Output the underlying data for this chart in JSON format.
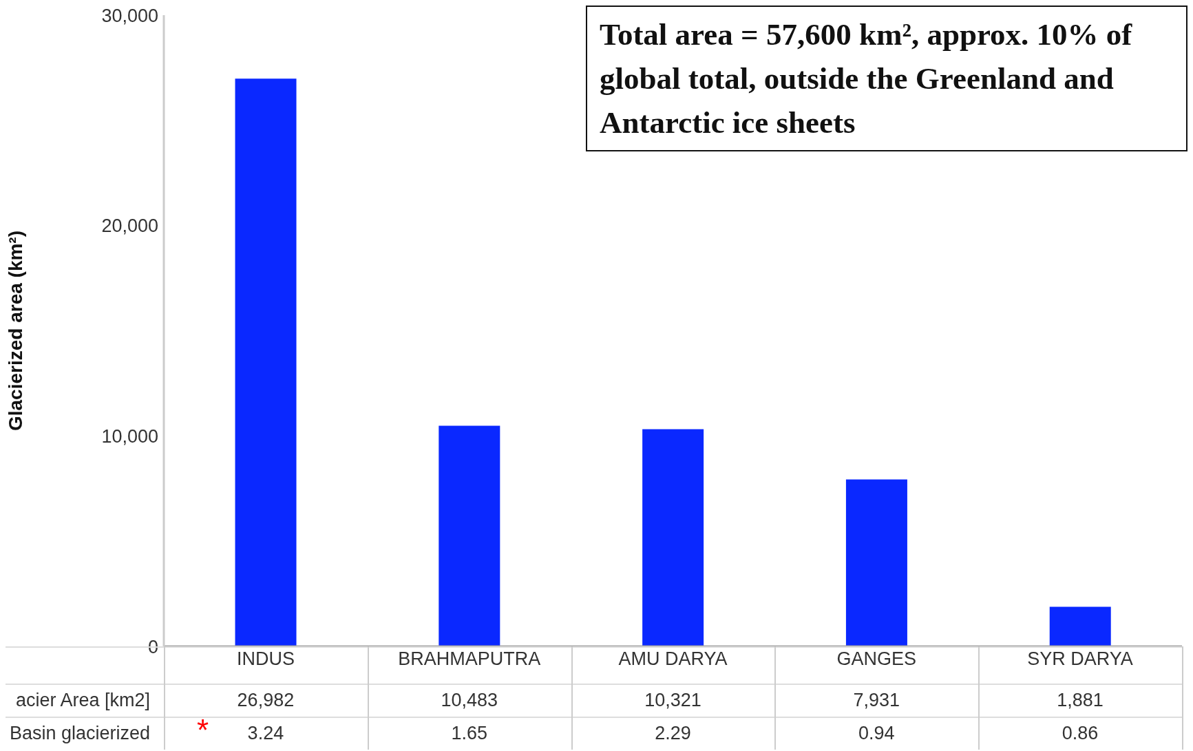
{
  "chart_data": {
    "type": "bar",
    "ylabel": "Glacierized area (km²)",
    "categories": [
      "INDUS",
      "BRAHMAPUTRA",
      "AMU DARYA",
      "GANGES",
      "SYR DARYA"
    ],
    "values": [
      26982,
      10483,
      10321,
      7931,
      1881
    ],
    "value_labels": [
      "26,982",
      "10,483",
      "10,321",
      "7,931",
      "1,881"
    ],
    "color": "#0a28ff",
    "ylim": [
      0,
      30000
    ],
    "yticks": [
      0,
      {
        "value": 10000,
        "label": "10,000"
      },
      {
        "value": 20000,
        "label": "20,000"
      },
      {
        "value": 30000,
        "label": "30,000"
      }
    ],
    "annotations": [
      "Total area = 57,600 km², approx. 10% of global total, outside the Greenland and Antarctic ice sheets",
      "acier Area [km2]",
      "Basin glacierized",
      "*",
      "3.24",
      "1.65",
      "2.29",
      "0.94",
      "0.86"
    ]
  }
}
